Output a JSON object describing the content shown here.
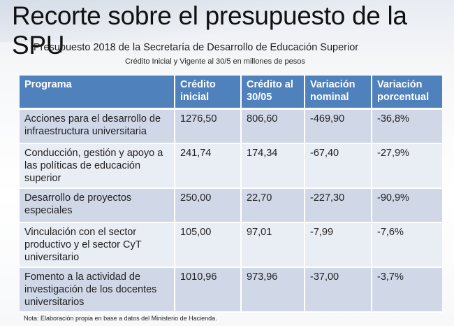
{
  "title": "Recorte sobre el presupuesto de la SPU",
  "subtitle": "Presupuesto 2018 de la Secretaría de Desarrollo de Educación Superior",
  "subtitle2": "Crédito Inicial y Vigente al 30/5 en millones de pesos",
  "table": {
    "headers": [
      "Programa",
      "Crédito inicial",
      "Crédito al 30/05",
      "Variación nominal",
      "Variación porcentual"
    ],
    "rows": [
      [
        "Acciones para el desarrollo de infraestructura universitaria",
        "1276,50",
        "806,60",
        "-469,90",
        "-36,8%"
      ],
      [
        "Conducción, gestión y apoyo a las políticas de educación superior",
        "241,74",
        "174,34",
        "-67,40",
        "-27,9%"
      ],
      [
        "Desarrollo de proyectos especiales",
        "250,00",
        "22,70",
        "-227,30",
        "-90,9%"
      ],
      [
        "Vinculación con el sector productivo y el sector CyT universitario",
        "105,00",
        "97,01",
        "-7,99",
        "-7,6%"
      ],
      [
        "Fomento a la actividad de investigación de los docentes universitarios",
        "1010,96",
        "973,96",
        "-37,00",
        "-3,7%"
      ]
    ]
  },
  "note": "Nota: Elaboración propia en base a datos del Ministerio de Hacienda.",
  "colors": {
    "header": "#4f81bd",
    "row_odd": "#d0d8e8",
    "row_even": "#e9edf4"
  }
}
